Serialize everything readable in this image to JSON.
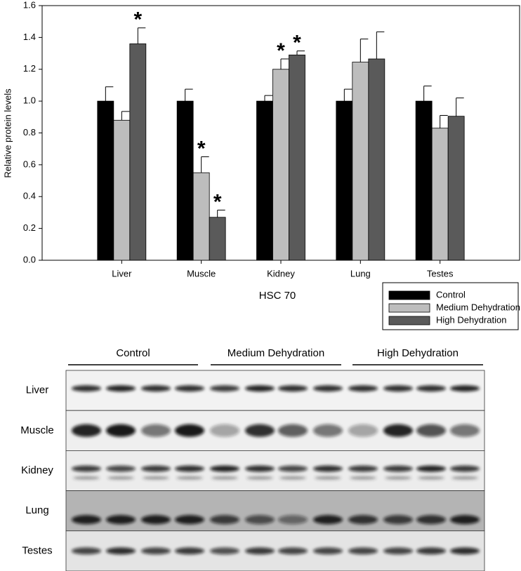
{
  "chart_data": {
    "type": "bar",
    "y_label": "Relative protein levels",
    "x_label": "HSC 70",
    "categories": [
      "Liver",
      "Muscle",
      "Kidney",
      "Lung",
      "Testes"
    ],
    "series": [
      {
        "name": "Control",
        "color": "#000000",
        "values": [
          1.0,
          1.0,
          1.0,
          1.0,
          1.0
        ],
        "errors": [
          0.09,
          0.075,
          0.035,
          0.075,
          0.095
        ],
        "markers": [
          null,
          null,
          null,
          null,
          null
        ]
      },
      {
        "name": "Medium Dehydration",
        "color": "#bdbdbd",
        "values": [
          0.88,
          0.55,
          1.2,
          1.245,
          0.83
        ],
        "errors": [
          0.055,
          0.1,
          0.065,
          0.145,
          0.08
        ],
        "markers": [
          null,
          "*",
          "*",
          null,
          null
        ]
      },
      {
        "name": "High Dehydration",
        "color": "#5a5a5a",
        "values": [
          1.36,
          0.27,
          1.29,
          1.265,
          0.905
        ],
        "errors": [
          0.1,
          0.045,
          0.025,
          0.17,
          0.115
        ],
        "markers": [
          "*",
          "*",
          "*",
          null,
          null
        ]
      }
    ],
    "ylim": [
      0,
      1.6
    ],
    "yticks": [
      {
        "value": 0,
        "label": "0.0"
      },
      0.2,
      0.4,
      0.6,
      0.8,
      {
        "value": 1,
        "label": "1.0"
      },
      1.2,
      1.4,
      1.6
    ],
    "legend": "lower-right"
  },
  "blot": {
    "groups": [
      "Control",
      "Medium Dehydration",
      "High Dehydration"
    ],
    "rows": [
      "Liver",
      "Muscle",
      "Kidney",
      "Lung",
      "Testes"
    ]
  }
}
